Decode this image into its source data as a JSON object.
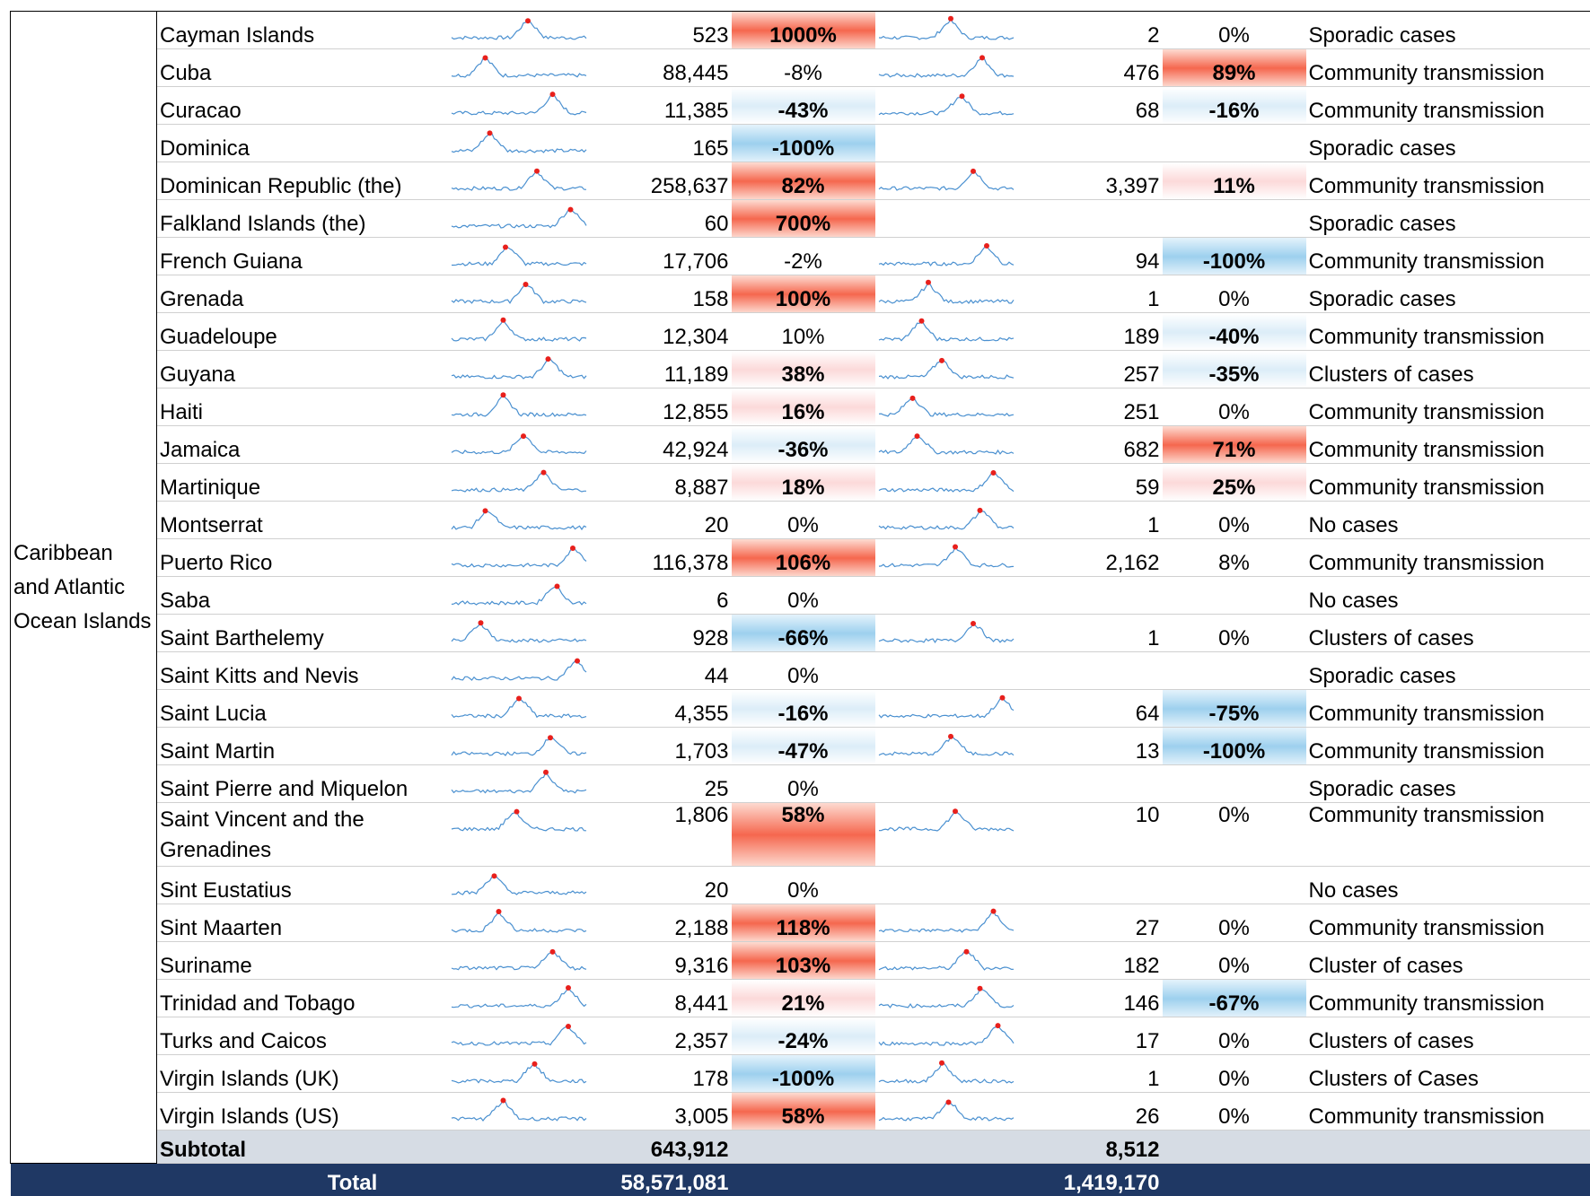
{
  "region": "Caribbean and Atlantic Ocean Islands",
  "rows": [
    [
      "Cayman Islands",
      "523",
      "1000%",
      "2",
      "0%",
      "Sporadic cases"
    ],
    [
      "Cuba",
      "88,445",
      "-8%",
      "476",
      "89%",
      "Community transmission"
    ],
    [
      "Curacao",
      "11,385",
      "-43%",
      "68",
      "-16%",
      "Community transmission"
    ],
    [
      "Dominica",
      "165",
      "-100%",
      null,
      null,
      "Sporadic cases"
    ],
    [
      "Dominican Republic (the)",
      "258,637",
      "82%",
      "3,397",
      "11%",
      "Community transmission"
    ],
    [
      "Falkland Islands (the)",
      "60",
      "700%",
      null,
      null,
      "Sporadic cases"
    ],
    [
      "French Guiana",
      "17,706",
      "-2%",
      "94",
      "-100%",
      "Community transmission"
    ],
    [
      "Grenada",
      "158",
      "100%",
      "1",
      "0%",
      "Sporadic cases"
    ],
    [
      "Guadeloupe",
      "12,304",
      "10%",
      "189",
      "-40%",
      "Community transmission"
    ],
    [
      "Guyana",
      "11,189",
      "38%",
      "257",
      "-35%",
      "Clusters of cases"
    ],
    [
      "Haiti",
      "12,855",
      "16%",
      "251",
      "0%",
      "Community transmission"
    ],
    [
      "Jamaica",
      "42,924",
      "-36%",
      "682",
      "71%",
      "Community transmission"
    ],
    [
      "Martinique",
      "8,887",
      "18%",
      "59",
      "25%",
      "Community transmission"
    ],
    [
      "Montserrat",
      "20",
      "0%",
      "1",
      "0%",
      "No cases"
    ],
    [
      "Puerto Rico",
      "116,378",
      "106%",
      "2,162",
      "8%",
      "Community transmission"
    ],
    [
      "Saba",
      "6",
      "0%",
      null,
      null,
      "No cases"
    ],
    [
      "Saint Barthelemy",
      "928",
      "-66%",
      "1",
      "0%",
      "Clusters of cases"
    ],
    [
      "Saint Kitts and Nevis",
      "44",
      "0%",
      null,
      null,
      "Sporadic cases"
    ],
    [
      "Saint Lucia",
      "4,355",
      "-16%",
      "64",
      "-75%",
      "Community transmission"
    ],
    [
      "Saint Martin",
      "1,703",
      "-47%",
      "13",
      "-100%",
      "Community transmission"
    ],
    [
      "Saint Pierre and Miquelon",
      "25",
      "0%",
      null,
      null,
      "Sporadic cases"
    ],
    [
      "Saint Vincent and the Grenadines",
      "1,806",
      "58%",
      "10",
      "0%",
      "Community transmission"
    ],
    [
      "Sint Eustatius",
      "20",
      "0%",
      null,
      null,
      "No cases"
    ],
    [
      "Sint Maarten",
      "2,188",
      "118%",
      "27",
      "0%",
      "Community transmission"
    ],
    [
      "Suriname",
      "9,316",
      "103%",
      "182",
      "0%",
      "Cluster of cases"
    ],
    [
      "Trinidad and Tobago",
      "8,441",
      "21%",
      "146",
      "-67%",
      "Community transmission"
    ],
    [
      "Turks and Caicos",
      "2,357",
      "-24%",
      "17",
      "0%",
      "Clusters of cases"
    ],
    [
      "Virgin Islands (UK)",
      "178",
      "-100%",
      "1",
      "0%",
      "Clusters of Cases"
    ],
    [
      "Virgin Islands (US)",
      "3,005",
      "58%",
      "26",
      "0%",
      "Community transmission"
    ]
  ],
  "subtotal": {
    "label": "Subtotal",
    "cases": "643,912",
    "deaths": "8,512"
  },
  "total": {
    "label": "Total",
    "cases": "58,571,081",
    "deaths": "1,419,170"
  }
}
